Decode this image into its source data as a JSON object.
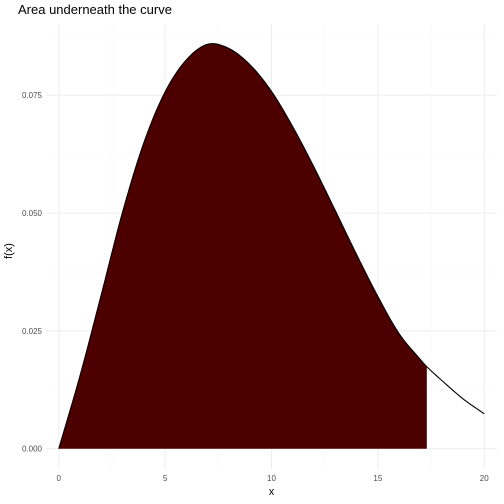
{
  "chart_data": {
    "type": "area",
    "title": "Area underneath the curve",
    "xlabel": "x",
    "ylabel": "f(x)",
    "xlim": [
      0,
      20
    ],
    "ylim": [
      0,
      0.0858
    ],
    "x_ticks": [
      0,
      5,
      10,
      15,
      20
    ],
    "x_tick_labels": [
      "0",
      "5",
      "10",
      "15",
      "20"
    ],
    "y_ticks": [
      0.0,
      0.025,
      0.05,
      0.075
    ],
    "y_tick_labels": [
      "0.000",
      "0.025",
      "0.050",
      "0.075"
    ],
    "grid": true,
    "legend": "none",
    "fill_color": "#4d0000",
    "line_color": "#000000",
    "shaded_region": [
      0,
      17.3
    ],
    "series": [
      {
        "x": [
          0,
          1,
          2,
          3,
          4,
          5,
          6,
          7,
          8,
          9,
          10,
          11,
          12,
          13,
          14,
          15,
          16,
          17,
          17.3,
          18,
          19,
          20
        ],
        "values": [
          0.0,
          0.0155,
          0.0327,
          0.0502,
          0.0649,
          0.0757,
          0.0825,
          0.0858,
          0.0849,
          0.0814,
          0.0758,
          0.0683,
          0.0597,
          0.0505,
          0.0412,
          0.0323,
          0.0244,
          0.0189,
          0.0174,
          0.0145,
          0.0106,
          0.0074
        ]
      }
    ]
  }
}
